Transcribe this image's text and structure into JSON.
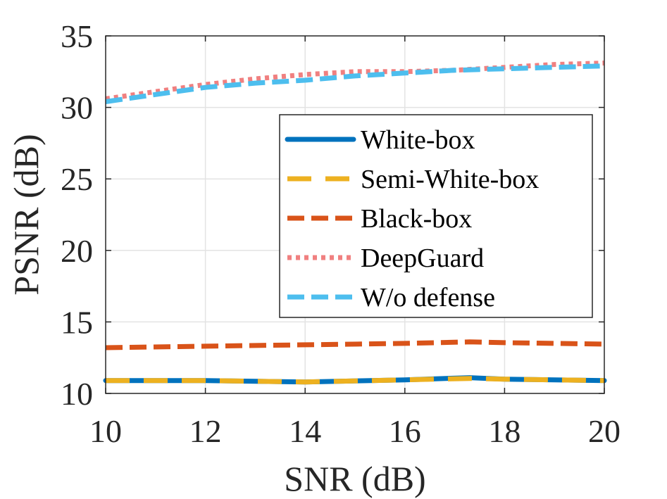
{
  "chart_data": {
    "type": "line",
    "title": "",
    "xlabel": "SNR (dB)",
    "ylabel": "PSNR (dB)",
    "xlim": [
      10,
      20
    ],
    "ylim": [
      10,
      35
    ],
    "xticks": [
      10,
      12,
      14,
      16,
      18,
      20
    ],
    "yticks": [
      10,
      15,
      20,
      25,
      30,
      35
    ],
    "grid": true,
    "legend_position": "center-right",
    "series": [
      {
        "name": "White-box",
        "color": "#0072BD",
        "style": "solid",
        "x": [
          10,
          12,
          14,
          16,
          17.3,
          18,
          20
        ],
        "y": [
          10.9,
          10.9,
          10.8,
          10.95,
          11.1,
          11.0,
          10.9
        ]
      },
      {
        "name": "Semi-White-box",
        "color": "#EDB120",
        "style": "longdash",
        "x": [
          10,
          12,
          14,
          16,
          17.3,
          18,
          20
        ],
        "y": [
          10.9,
          10.9,
          10.8,
          10.95,
          11.05,
          11.0,
          10.9
        ]
      },
      {
        "name": "Black-box",
        "color": "#D95319",
        "style": "dashed",
        "x": [
          10,
          12,
          14,
          16,
          17.3,
          18,
          20
        ],
        "y": [
          13.2,
          13.3,
          13.4,
          13.5,
          13.6,
          13.55,
          13.45
        ]
      },
      {
        "name": "DeepGuard",
        "color": "#F08080",
        "style": "dotted",
        "x": [
          10,
          11,
          12,
          13,
          14,
          15,
          16,
          17,
          18,
          19,
          20
        ],
        "y": [
          30.6,
          31.1,
          31.6,
          32.0,
          32.3,
          32.5,
          32.5,
          32.6,
          32.8,
          33.0,
          33.1
        ]
      },
      {
        "name": "W/o defense",
        "color": "#4DBEEE",
        "style": "dashed",
        "x": [
          10,
          11,
          12,
          13,
          14,
          15,
          16,
          17,
          18,
          19,
          20
        ],
        "y": [
          30.4,
          30.9,
          31.4,
          31.7,
          31.9,
          32.2,
          32.4,
          32.6,
          32.7,
          32.8,
          32.9
        ]
      }
    ]
  }
}
